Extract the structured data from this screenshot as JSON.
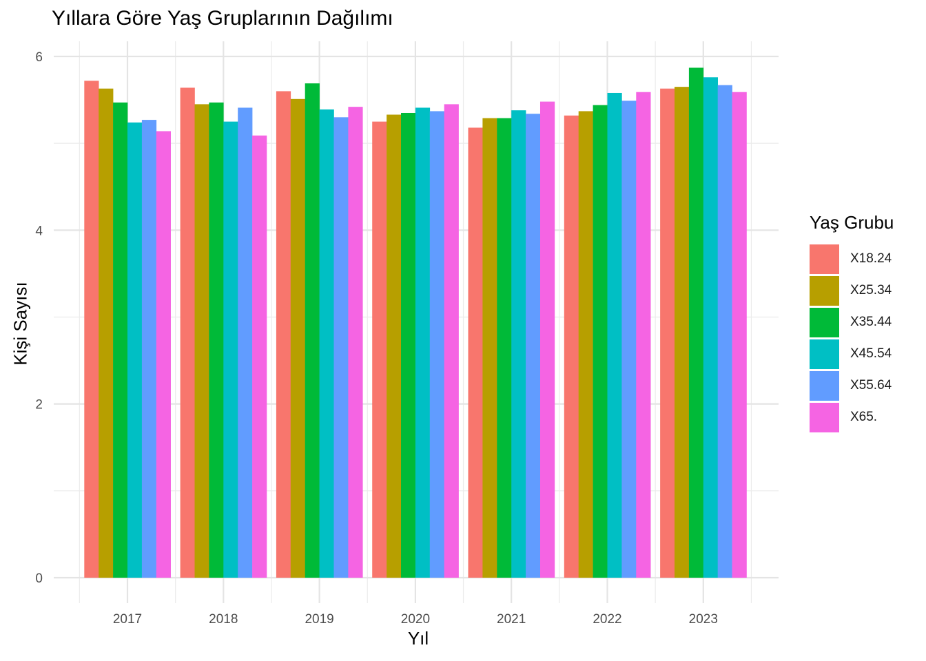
{
  "chart_data": {
    "type": "bar",
    "title": "Yıllara Göre Yaş Gruplarının Dağılımı",
    "xlabel": "Yıl",
    "ylabel": "Kişi Sayısı",
    "categories": [
      "2017",
      "2018",
      "2019",
      "2020",
      "2021",
      "2022",
      "2023"
    ],
    "ylim": [
      -0.15,
      6.1
    ],
    "yticks": [
      0,
      2,
      4,
      6
    ],
    "grid": true,
    "legend": {
      "title": "Yaş Grubu",
      "position": "right"
    },
    "series": [
      {
        "name": "X18.24",
        "color": "#F8766D",
        "values": [
          5.72,
          5.64,
          5.6,
          5.25,
          5.18,
          5.32,
          5.63
        ]
      },
      {
        "name": "X25.34",
        "color": "#B79F00",
        "values": [
          5.63,
          5.45,
          5.51,
          5.33,
          5.29,
          5.37,
          5.65
        ]
      },
      {
        "name": "X35.44",
        "color": "#00BA38",
        "values": [
          5.47,
          5.47,
          5.69,
          5.35,
          5.29,
          5.44,
          5.87
        ]
      },
      {
        "name": "X45.54",
        "color": "#00BFC4",
        "values": [
          5.24,
          5.25,
          5.39,
          5.41,
          5.38,
          5.58,
          5.76
        ]
      },
      {
        "name": "X55.64",
        "color": "#619CFF",
        "values": [
          5.27,
          5.41,
          5.3,
          5.37,
          5.34,
          5.49,
          5.67
        ]
      },
      {
        "name": "X65.",
        "color": "#F564E3",
        "values": [
          5.14,
          5.09,
          5.42,
          5.45,
          5.48,
          5.59,
          5.59
        ]
      }
    ]
  }
}
